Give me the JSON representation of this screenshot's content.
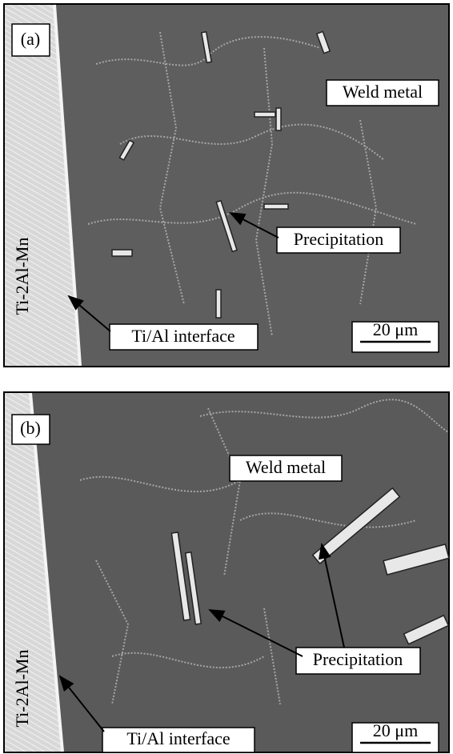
{
  "panels": [
    {
      "label": "(a)",
      "region": "Weld metal",
      "feature": "Precipitation",
      "interface": "Ti/Al interface",
      "base": "Ti-2Al-Mn",
      "scale": "20 μm"
    },
    {
      "label": "(b)",
      "region": "Weld metal",
      "feature": "Precipitation",
      "interface": "Ti/Al interface",
      "base": "Ti-2Al-Mn",
      "scale": "20 μm"
    }
  ]
}
